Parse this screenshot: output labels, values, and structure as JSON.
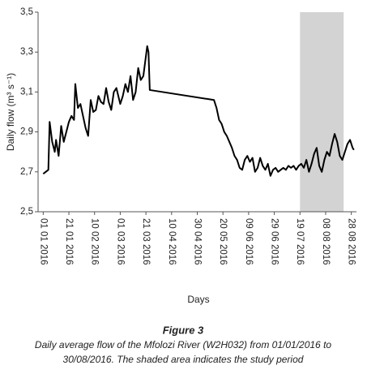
{
  "chart_data": {
    "type": "line",
    "x_label": "Days",
    "y_label": "Daily flow (m³ s⁻¹)",
    "caption_title": "Figure 3",
    "caption_lines": [
      "Daily average flow of the Mfolozi River (W2H032) from 01/01/2016 to",
      "30/08/2016. The shaded area indicates the study period"
    ],
    "shaded": {
      "start": "2016-07-19",
      "end": "2016-08-22",
      "color": "#d3d3d3"
    },
    "xlim": [
      "2015-12-28",
      "2016-09-01"
    ],
    "xticks": [
      {
        "value": "2016-01-01",
        "label": "01 01 2016"
      },
      {
        "value": "2016-01-21",
        "label": "21 01 2016"
      },
      {
        "value": "2016-02-10",
        "label": "10 02 2016"
      },
      {
        "value": "2016-03-01",
        "label": "01 03 2016"
      },
      {
        "value": "2016-03-21",
        "label": "21 03 2016"
      },
      {
        "value": "2016-04-10",
        "label": "10 04 2016"
      },
      {
        "value": "2016-04-30",
        "label": "30 04 2016"
      },
      {
        "value": "2016-05-20",
        "label": "20 05 2016"
      },
      {
        "value": "2016-06-09",
        "label": "09 06 2016"
      },
      {
        "value": "2016-06-29",
        "label": "29 06 2016"
      },
      {
        "value": "2016-07-19",
        "label": "19 07 2016"
      },
      {
        "value": "2016-08-08",
        "label": "08 08 2016"
      },
      {
        "value": "2016-08-28",
        "label": "28 08 2016"
      }
    ],
    "ylim": [
      2.5,
      3.5
    ],
    "yticks": [
      {
        "value": 2.5,
        "label": "2,5"
      },
      {
        "value": 2.7,
        "label": "2,7"
      },
      {
        "value": 2.9,
        "label": "2,9"
      },
      {
        "value": 3.1,
        "label": "3,1"
      },
      {
        "value": 3.3,
        "label": "3,3"
      },
      {
        "value": 3.5,
        "label": "3,5"
      }
    ],
    "series": [
      {
        "name": "Daily flow",
        "color": "#000000",
        "x": [
          "2016-01-01",
          "2016-01-03",
          "2016-01-05",
          "2016-01-06",
          "2016-01-08",
          "2016-01-10",
          "2016-01-11",
          "2016-01-13",
          "2016-01-15",
          "2016-01-17",
          "2016-01-19",
          "2016-01-21",
          "2016-01-23",
          "2016-01-25",
          "2016-01-26",
          "2016-01-28",
          "2016-01-30",
          "2016-02-01",
          "2016-02-03",
          "2016-02-05",
          "2016-02-07",
          "2016-02-09",
          "2016-02-11",
          "2016-02-13",
          "2016-02-15",
          "2016-02-17",
          "2016-02-19",
          "2016-02-21",
          "2016-02-23",
          "2016-02-25",
          "2016-02-27",
          "2016-03-01",
          "2016-03-03",
          "2016-03-05",
          "2016-03-07",
          "2016-03-09",
          "2016-03-11",
          "2016-03-13",
          "2016-03-15",
          "2016-03-17",
          "2016-03-19",
          "2016-03-21",
          "2016-03-22",
          "2016-03-23",
          "2016-03-24",
          "2016-05-13",
          "2016-05-15",
          "2016-05-17",
          "2016-05-19",
          "2016-05-21",
          "2016-05-23",
          "2016-05-25",
          "2016-05-27",
          "2016-05-29",
          "2016-05-31",
          "2016-06-02",
          "2016-06-04",
          "2016-06-06",
          "2016-06-08",
          "2016-06-10",
          "2016-06-12",
          "2016-06-14",
          "2016-06-16",
          "2016-06-18",
          "2016-06-20",
          "2016-06-22",
          "2016-06-24",
          "2016-06-26",
          "2016-06-28",
          "2016-06-30",
          "2016-07-02",
          "2016-07-04",
          "2016-07-06",
          "2016-07-08",
          "2016-07-10",
          "2016-07-12",
          "2016-07-14",
          "2016-07-16",
          "2016-07-18",
          "2016-07-20",
          "2016-07-22",
          "2016-07-24",
          "2016-07-26",
          "2016-07-28",
          "2016-07-30",
          "2016-08-01",
          "2016-08-03",
          "2016-08-05",
          "2016-08-07",
          "2016-08-09",
          "2016-08-11",
          "2016-08-13",
          "2016-08-15",
          "2016-08-17",
          "2016-08-19",
          "2016-08-21",
          "2016-08-23",
          "2016-08-25",
          "2016-08-27",
          "2016-08-29",
          "2016-08-30"
        ],
        "values": [
          2.69,
          2.7,
          2.71,
          2.95,
          2.85,
          2.8,
          2.86,
          2.78,
          2.93,
          2.85,
          2.9,
          2.95,
          2.98,
          2.96,
          3.14,
          3.02,
          3.04,
          2.98,
          2.92,
          2.88,
          3.06,
          3.0,
          3.01,
          3.08,
          3.05,
          3.04,
          3.12,
          3.05,
          3.01,
          3.1,
          3.12,
          3.04,
          3.08,
          3.14,
          3.1,
          3.18,
          3.06,
          3.1,
          3.22,
          3.16,
          3.18,
          3.28,
          3.33,
          3.3,
          3.11,
          3.06,
          3.02,
          2.96,
          2.94,
          2.9,
          2.88,
          2.85,
          2.82,
          2.78,
          2.76,
          2.72,
          2.71,
          2.76,
          2.78,
          2.75,
          2.77,
          2.7,
          2.72,
          2.77,
          2.73,
          2.71,
          2.74,
          2.68,
          2.71,
          2.72,
          2.7,
          2.71,
          2.72,
          2.71,
          2.73,
          2.72,
          2.73,
          2.71,
          2.73,
          2.74,
          2.72,
          2.76,
          2.7,
          2.74,
          2.79,
          2.82,
          2.73,
          2.7,
          2.76,
          2.8,
          2.78,
          2.84,
          2.89,
          2.85,
          2.78,
          2.76,
          2.8,
          2.84,
          2.86,
          2.82,
          2.81
        ]
      }
    ]
  }
}
